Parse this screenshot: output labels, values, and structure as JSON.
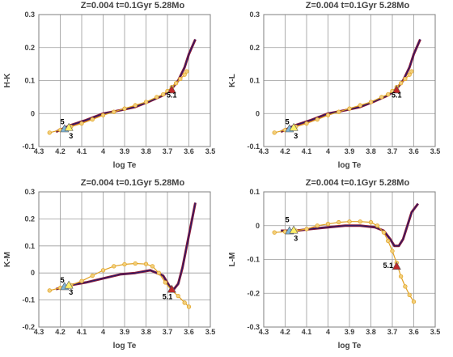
{
  "colors": {
    "frame": "#7f7f7f",
    "grid": "#9a9a9a",
    "line_outer": "#8b1a3a",
    "line_inner": "#1a1a6e",
    "tracks_line": "#e0a020",
    "tracks_marker": "#f2cf7a",
    "marker_red": "#c0282a",
    "marker_yellow": "#fff06a",
    "marker_blue": "#7fb6d9"
  },
  "chart_data": [
    {
      "type": "line",
      "title": "Z=0.004  t=0.1Gyr 5.28Mo",
      "xlabel": "log Te",
      "ylabel": "H-K",
      "xlim": [
        4.3,
        3.5
      ],
      "ylim": [
        -0.1,
        0.3
      ],
      "xticks": [
        "4.3",
        "4.2",
        "4.1",
        "4",
        "3.9",
        "3.8",
        "3.7",
        "3.6",
        "3.5"
      ],
      "yticks": [
        "-0.1",
        "0",
        "0.1",
        "0.2",
        "0.3"
      ],
      "series": [
        {
          "style": "solid",
          "x": [
            4.22,
            4.15,
            4.08,
            4.0,
            3.92,
            3.85,
            3.78,
            3.72,
            3.68,
            3.65,
            3.62,
            3.6,
            3.57
          ],
          "y": [
            -0.055,
            -0.035,
            -0.02,
            0.0,
            0.01,
            0.02,
            0.038,
            0.055,
            0.075,
            0.1,
            0.14,
            0.18,
            0.225
          ]
        },
        {
          "style": "markers",
          "x": [
            4.25,
            4.2,
            4.15,
            4.1,
            4.05,
            4.0,
            3.95,
            3.9,
            3.85,
            3.8,
            3.75,
            3.72,
            3.7,
            3.68,
            3.66,
            3.64,
            3.62,
            3.61
          ],
          "y": [
            -0.058,
            -0.05,
            -0.04,
            -0.03,
            -0.018,
            -0.005,
            0.005,
            0.015,
            0.025,
            0.035,
            0.05,
            0.058,
            0.068,
            0.08,
            0.092,
            0.105,
            0.118,
            0.128
          ]
        }
      ],
      "annotations": [
        {
          "text": "5",
          "x": 4.19,
          "y": -0.033
        },
        {
          "text": "3",
          "x": 4.15,
          "y": -0.075
        },
        {
          "text": "5.1",
          "x": 3.68,
          "y": 0.048
        }
      ],
      "points": [
        {
          "marker": "triangle",
          "color": "blue",
          "x": 4.18,
          "y": -0.046
        },
        {
          "marker": "triangle",
          "color": "yellow",
          "x": 4.16,
          "y": -0.042
        },
        {
          "marker": "triangle",
          "color": "red",
          "x": 3.68,
          "y": 0.072
        }
      ]
    },
    {
      "type": "line",
      "title": "Z=0.004  t=0.1Gyr 5.28Mo",
      "xlabel": "log Te",
      "ylabel": "K-L",
      "xlim": [
        4.3,
        3.5
      ],
      "ylim": [
        -0.1,
        0.3
      ],
      "xticks": [
        "4.3",
        "4.2",
        "4.1",
        "4",
        "3.9",
        "3.8",
        "3.7",
        "3.6",
        "3.5"
      ],
      "yticks": [
        "-0.1",
        "0",
        "0.1",
        "0.2",
        "0.3"
      ],
      "series": [
        {
          "style": "solid",
          "x": [
            4.22,
            4.15,
            4.08,
            4.0,
            3.92,
            3.85,
            3.78,
            3.72,
            3.68,
            3.65,
            3.62,
            3.6,
            3.57
          ],
          "y": [
            -0.055,
            -0.035,
            -0.02,
            0.0,
            0.01,
            0.02,
            0.038,
            0.055,
            0.075,
            0.1,
            0.14,
            0.18,
            0.225
          ]
        },
        {
          "style": "markers",
          "x": [
            4.25,
            4.2,
            4.15,
            4.1,
            4.05,
            4.0,
            3.95,
            3.9,
            3.85,
            3.8,
            3.75,
            3.72,
            3.7,
            3.68,
            3.66,
            3.64,
            3.62,
            3.61
          ],
          "y": [
            -0.058,
            -0.05,
            -0.04,
            -0.03,
            -0.018,
            -0.005,
            0.005,
            0.015,
            0.025,
            0.035,
            0.05,
            0.058,
            0.068,
            0.08,
            0.092,
            0.105,
            0.118,
            0.128
          ]
        }
      ],
      "annotations": [
        {
          "text": "5",
          "x": 4.19,
          "y": -0.033
        },
        {
          "text": "3",
          "x": 4.15,
          "y": -0.075
        },
        {
          "text": "5.1",
          "x": 3.68,
          "y": 0.048
        }
      ],
      "points": [
        {
          "marker": "triangle",
          "color": "blue",
          "x": 4.18,
          "y": -0.046
        },
        {
          "marker": "triangle",
          "color": "yellow",
          "x": 4.16,
          "y": -0.042
        },
        {
          "marker": "triangle",
          "color": "red",
          "x": 3.68,
          "y": 0.072
        }
      ]
    },
    {
      "type": "line",
      "title": "Z=0.004  t=0.1Gyr 5.28Mo",
      "xlabel": "log Te",
      "ylabel": "K-M",
      "xlim": [
        4.3,
        3.5
      ],
      "ylim": [
        -0.2,
        0.3
      ],
      "xticks": [
        "4.3",
        "4.2",
        "4.1",
        "4",
        "3.9",
        "3.8",
        "3.7",
        "3.6",
        "3.5"
      ],
      "yticks": [
        "-0.2",
        "-0.1",
        "0",
        "0.1",
        "0.2",
        "0.3"
      ],
      "series": [
        {
          "style": "solid",
          "x": [
            4.22,
            4.15,
            4.08,
            4.0,
            3.92,
            3.85,
            3.78,
            3.72,
            3.69,
            3.67,
            3.65,
            3.63,
            3.61,
            3.59,
            3.57
          ],
          "y": [
            -0.06,
            -0.045,
            -0.035,
            -0.02,
            -0.005,
            0.0,
            0.01,
            -0.01,
            -0.05,
            -0.06,
            -0.04,
            0.02,
            0.1,
            0.18,
            0.26
          ]
        },
        {
          "style": "markers",
          "x": [
            4.25,
            4.2,
            4.15,
            4.1,
            4.05,
            4.0,
            3.95,
            3.9,
            3.85,
            3.8,
            3.77,
            3.74,
            3.71,
            3.68,
            3.65,
            3.62,
            3.6
          ],
          "y": [
            -0.065,
            -0.055,
            -0.045,
            -0.03,
            -0.01,
            0.01,
            0.025,
            0.032,
            0.035,
            0.033,
            0.025,
            0.0,
            -0.035,
            -0.065,
            -0.085,
            -0.11,
            -0.125
          ]
        }
      ],
      "annotations": [
        {
          "text": "5",
          "x": 4.19,
          "y": -0.035
        },
        {
          "text": "3",
          "x": 4.15,
          "y": -0.08
        },
        {
          "text": "5.1",
          "x": 3.7,
          "y": -0.097
        }
      ],
      "points": [
        {
          "marker": "triangle",
          "color": "blue",
          "x": 4.18,
          "y": -0.05
        },
        {
          "marker": "triangle",
          "color": "yellow",
          "x": 4.16,
          "y": -0.045
        },
        {
          "marker": "triangle",
          "color": "red",
          "x": 3.68,
          "y": -0.06
        }
      ]
    },
    {
      "type": "line",
      "title": "Z=0.004  t=0.1Gyr 5.28Mo",
      "xlabel": "log Te",
      "ylabel": "L-M",
      "xlim": [
        4.3,
        3.5
      ],
      "ylim": [
        -0.3,
        0.1
      ],
      "xticks": [
        "4.3",
        "4.2",
        "4.1",
        "4",
        "3.9",
        "3.8",
        "3.7",
        "3.6",
        "3.5"
      ],
      "yticks": [
        "-0.3",
        "-0.2",
        "-0.1",
        "0",
        "0.1"
      ],
      "series": [
        {
          "style": "solid",
          "x": [
            4.22,
            4.15,
            4.08,
            4.0,
            3.92,
            3.85,
            3.78,
            3.74,
            3.71,
            3.69,
            3.67,
            3.65,
            3.63,
            3.61,
            3.58
          ],
          "y": [
            -0.015,
            -0.015,
            -0.01,
            -0.005,
            0.0,
            0.0,
            -0.005,
            -0.015,
            -0.04,
            -0.06,
            -0.06,
            -0.04,
            0.0,
            0.04,
            0.065
          ]
        },
        {
          "style": "markers",
          "x": [
            4.25,
            4.2,
            4.15,
            4.1,
            4.05,
            4.0,
            3.95,
            3.9,
            3.85,
            3.8,
            3.77,
            3.74,
            3.72,
            3.7,
            3.68,
            3.66,
            3.64,
            3.62,
            3.6
          ],
          "y": [
            -0.02,
            -0.018,
            -0.015,
            -0.01,
            0.0,
            0.005,
            0.01,
            0.012,
            0.012,
            0.01,
            0.0,
            -0.02,
            -0.045,
            -0.075,
            -0.11,
            -0.15,
            -0.18,
            -0.205,
            -0.225
          ]
        }
      ],
      "annotations": [
        {
          "text": "5",
          "x": 4.19,
          "y": 0.01
        },
        {
          "text": "3",
          "x": 4.15,
          "y": -0.045
        },
        {
          "text": "5.1",
          "x": 3.72,
          "y": -0.125
        }
      ],
      "points": [
        {
          "marker": "triangle",
          "color": "blue",
          "x": 4.18,
          "y": -0.015
        },
        {
          "marker": "triangle",
          "color": "yellow",
          "x": 4.16,
          "y": -0.013
        },
        {
          "marker": "triangle",
          "color": "red",
          "x": 3.68,
          "y": -0.12
        }
      ]
    }
  ]
}
